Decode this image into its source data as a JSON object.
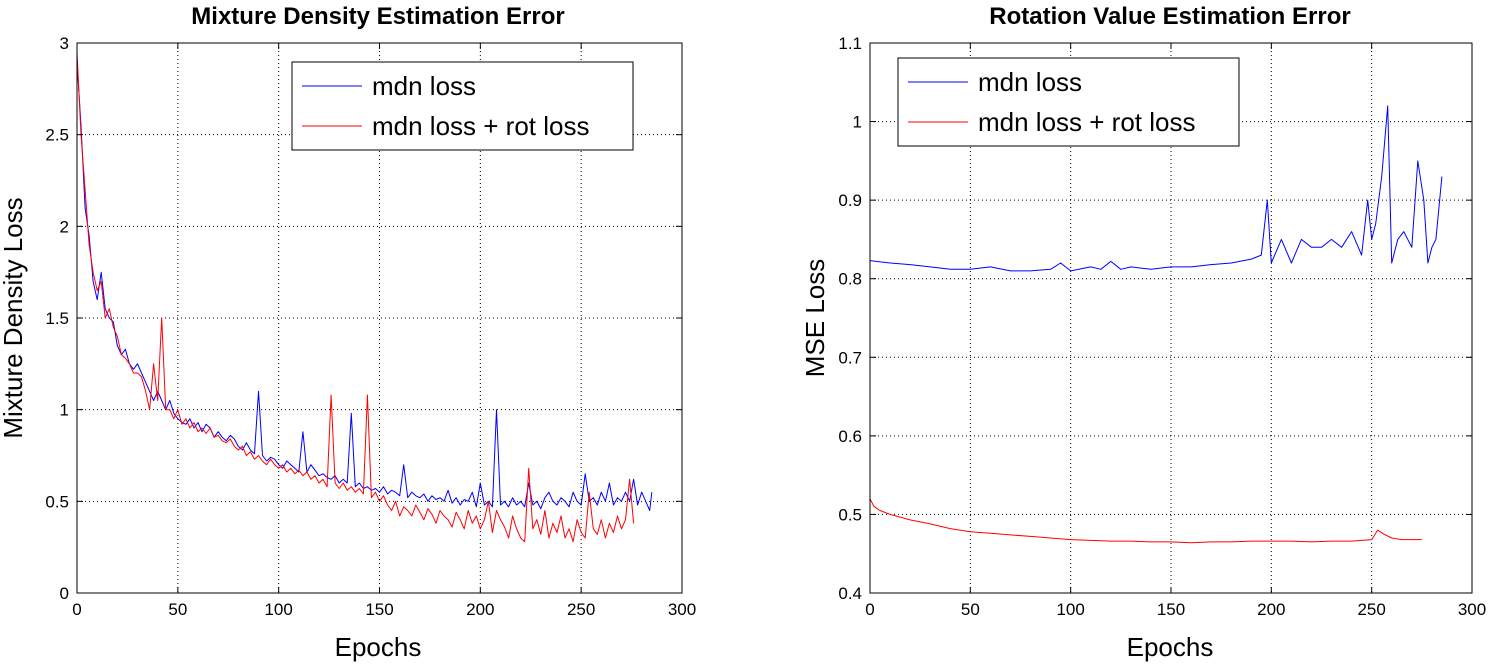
{
  "chart_data": [
    {
      "type": "line",
      "title": "Mixture Density Estimation Error",
      "xlabel": "Epochs",
      "ylabel": "Mixture Density Loss",
      "xlim": [
        0,
        300
      ],
      "ylim": [
        0,
        3
      ],
      "xticks": [
        0,
        50,
        100,
        150,
        200,
        250,
        300
      ],
      "yticks": [
        0,
        0.5,
        1,
        1.5,
        2,
        2.5,
        3
      ],
      "xtick_labels": [
        "0",
        "50",
        "100",
        "150",
        "200",
        "250",
        "300"
      ],
      "ytick_labels": [
        "0",
        "0.5",
        "1",
        "1.5",
        "2",
        "2.5",
        "3"
      ],
      "grid": true,
      "legend_position": "top-right",
      "series": [
        {
          "name": "mdn loss",
          "color": "#0000ff",
          "x": [
            0,
            2,
            4,
            6,
            8,
            10,
            12,
            14,
            16,
            18,
            20,
            22,
            24,
            26,
            28,
            30,
            32,
            34,
            36,
            38,
            40,
            42,
            44,
            46,
            48,
            50,
            52,
            54,
            56,
            58,
            60,
            62,
            64,
            66,
            68,
            70,
            72,
            74,
            76,
            78,
            80,
            82,
            84,
            86,
            88,
            90,
            92,
            94,
            96,
            98,
            100,
            102,
            104,
            106,
            108,
            110,
            112,
            114,
            116,
            118,
            120,
            122,
            124,
            126,
            128,
            130,
            132,
            134,
            136,
            138,
            140,
            142,
            144,
            146,
            148,
            150,
            152,
            154,
            156,
            158,
            160,
            162,
            164,
            166,
            168,
            170,
            172,
            174,
            176,
            178,
            180,
            182,
            184,
            186,
            188,
            190,
            192,
            194,
            196,
            198,
            200,
            202,
            204,
            206,
            208,
            210,
            212,
            214,
            216,
            218,
            220,
            222,
            224,
            226,
            228,
            230,
            232,
            234,
            236,
            238,
            240,
            242,
            244,
            246,
            248,
            250,
            252,
            254,
            256,
            258,
            260,
            262,
            264,
            266,
            268,
            270,
            272,
            274,
            276,
            278,
            280,
            282,
            284,
            285
          ],
          "y": [
            2.9,
            2.55,
            2.1,
            1.95,
            1.7,
            1.6,
            1.75,
            1.55,
            1.5,
            1.48,
            1.35,
            1.3,
            1.33,
            1.25,
            1.22,
            1.25,
            1.2,
            1.15,
            1.1,
            1.05,
            1.1,
            1.05,
            1.0,
            1.05,
            0.98,
            0.95,
            0.93,
            0.92,
            0.95,
            0.9,
            0.93,
            0.88,
            0.92,
            0.9,
            0.85,
            0.88,
            0.85,
            0.83,
            0.86,
            0.84,
            0.8,
            0.78,
            0.82,
            0.78,
            0.76,
            1.1,
            0.75,
            0.72,
            0.74,
            0.73,
            0.7,
            0.68,
            0.72,
            0.7,
            0.68,
            0.66,
            0.88,
            0.66,
            0.7,
            0.67,
            0.64,
            0.65,
            0.63,
            0.62,
            0.64,
            0.6,
            0.62,
            0.6,
            0.98,
            0.58,
            0.6,
            0.57,
            0.58,
            0.56,
            0.57,
            0.55,
            0.58,
            0.54,
            0.56,
            0.55,
            0.53,
            0.7,
            0.52,
            0.55,
            0.53,
            0.52,
            0.54,
            0.5,
            0.53,
            0.51,
            0.52,
            0.5,
            0.56,
            0.49,
            0.52,
            0.48,
            0.51,
            0.5,
            0.55,
            0.47,
            0.6,
            0.48,
            0.5,
            0.47,
            1.0,
            0.48,
            0.5,
            0.47,
            0.52,
            0.48,
            0.5,
            0.47,
            0.6,
            0.48,
            0.5,
            0.46,
            0.52,
            0.55,
            0.5,
            0.48,
            0.52,
            0.5,
            0.47,
            0.55,
            0.5,
            0.48,
            0.65,
            0.5,
            0.52,
            0.48,
            0.55,
            0.5,
            0.6,
            0.48,
            0.52,
            0.5,
            0.55,
            0.5,
            0.62,
            0.48,
            0.55,
            0.5,
            0.45,
            0.55
          ]
        },
        {
          "name": "mdn loss + rot loss",
          "color": "#ff0000",
          "x": [
            0,
            2,
            4,
            6,
            8,
            10,
            12,
            14,
            16,
            18,
            20,
            22,
            24,
            26,
            28,
            30,
            32,
            34,
            36,
            38,
            40,
            42,
            44,
            46,
            48,
            50,
            52,
            54,
            56,
            58,
            60,
            62,
            64,
            66,
            68,
            70,
            72,
            74,
            76,
            78,
            80,
            82,
            84,
            86,
            88,
            90,
            92,
            94,
            96,
            98,
            100,
            102,
            104,
            106,
            108,
            110,
            112,
            114,
            116,
            118,
            120,
            122,
            124,
            126,
            128,
            130,
            132,
            134,
            136,
            138,
            140,
            142,
            144,
            146,
            148,
            150,
            152,
            154,
            156,
            158,
            160,
            162,
            164,
            166,
            168,
            170,
            172,
            174,
            176,
            178,
            180,
            182,
            184,
            186,
            188,
            190,
            192,
            194,
            196,
            198,
            200,
            202,
            204,
            206,
            208,
            210,
            212,
            214,
            216,
            218,
            220,
            222,
            224,
            226,
            228,
            230,
            232,
            234,
            236,
            238,
            240,
            242,
            244,
            246,
            248,
            250,
            252,
            254,
            256,
            258,
            260,
            262,
            264,
            266,
            268,
            270,
            272,
            274,
            276
          ],
          "y": [
            2.95,
            2.5,
            2.2,
            1.9,
            1.75,
            1.65,
            1.7,
            1.5,
            1.55,
            1.45,
            1.4,
            1.3,
            1.28,
            1.25,
            1.2,
            1.2,
            1.18,
            1.1,
            1.0,
            1.25,
            1.05,
            1.5,
            1.0,
            1.0,
            0.95,
            1.0,
            0.92,
            0.95,
            0.9,
            0.93,
            0.88,
            0.9,
            0.87,
            0.9,
            0.85,
            0.86,
            0.83,
            0.82,
            0.84,
            0.8,
            0.78,
            0.8,
            0.75,
            0.77,
            0.73,
            0.75,
            0.72,
            0.7,
            0.73,
            0.7,
            0.68,
            0.7,
            0.66,
            0.68,
            0.65,
            0.67,
            0.64,
            0.66,
            0.62,
            0.64,
            0.6,
            0.62,
            0.58,
            1.08,
            0.6,
            0.57,
            0.6,
            0.56,
            0.58,
            0.55,
            0.57,
            0.54,
            1.08,
            0.52,
            0.55,
            0.5,
            0.53,
            0.48,
            0.45,
            0.5,
            0.42,
            0.47,
            0.45,
            0.42,
            0.48,
            0.44,
            0.4,
            0.46,
            0.43,
            0.38,
            0.45,
            0.42,
            0.4,
            0.36,
            0.44,
            0.4,
            0.35,
            0.45,
            0.38,
            0.42,
            0.35,
            0.4,
            0.5,
            0.33,
            0.45,
            0.4,
            0.36,
            0.3,
            0.42,
            0.35,
            0.3,
            0.28,
            0.68,
            0.35,
            0.4,
            0.32,
            0.45,
            0.3,
            0.38,
            0.33,
            0.42,
            0.3,
            0.35,
            0.28,
            0.4,
            0.33,
            0.3,
            0.55,
            0.35,
            0.32,
            0.4,
            0.3,
            0.38,
            0.33,
            0.42,
            0.35,
            0.4,
            0.62,
            0.38
          ]
        }
      ]
    },
    {
      "type": "line",
      "title": "Rotation Value Estimation Error",
      "xlabel": "Epochs",
      "ylabel": "MSE Loss",
      "xlim": [
        0,
        300
      ],
      "ylim": [
        0.4,
        1.1
      ],
      "xticks": [
        0,
        50,
        100,
        150,
        200,
        250,
        300
      ],
      "yticks": [
        0.4,
        0.5,
        0.6,
        0.7,
        0.8,
        0.9,
        1.0,
        1.1
      ],
      "xtick_labels": [
        "0",
        "50",
        "100",
        "150",
        "200",
        "250",
        "300"
      ],
      "ytick_labels": [
        "0.4",
        "0.5",
        "0.6",
        "0.7",
        "0.8",
        "0.9",
        "1",
        "1.1"
      ],
      "grid": true,
      "legend_position": "top-left",
      "series": [
        {
          "name": "mdn loss",
          "color": "#0000ff",
          "x": [
            0,
            10,
            20,
            30,
            40,
            50,
            60,
            70,
            80,
            90,
            95,
            100,
            110,
            115,
            120,
            125,
            130,
            140,
            150,
            160,
            170,
            180,
            190,
            195,
            198,
            200,
            205,
            210,
            215,
            220,
            225,
            230,
            235,
            240,
            245,
            248,
            250,
            252,
            255,
            258,
            260,
            263,
            266,
            270,
            273,
            276,
            278,
            280,
            282,
            285
          ],
          "y": [
            0.823,
            0.82,
            0.818,
            0.815,
            0.812,
            0.812,
            0.815,
            0.81,
            0.81,
            0.812,
            0.82,
            0.81,
            0.815,
            0.812,
            0.822,
            0.812,
            0.815,
            0.812,
            0.815,
            0.815,
            0.818,
            0.82,
            0.825,
            0.83,
            0.9,
            0.82,
            0.85,
            0.82,
            0.85,
            0.84,
            0.84,
            0.85,
            0.84,
            0.86,
            0.83,
            0.9,
            0.85,
            0.87,
            0.93,
            1.02,
            0.82,
            0.85,
            0.86,
            0.84,
            0.95,
            0.9,
            0.82,
            0.84,
            0.85,
            0.93
          ]
        },
        {
          "name": "mdn loss + rot loss",
          "color": "#ff0000",
          "x": [
            0,
            2,
            5,
            10,
            20,
            30,
            40,
            50,
            60,
            70,
            80,
            90,
            100,
            110,
            120,
            130,
            140,
            150,
            160,
            170,
            180,
            190,
            200,
            210,
            220,
            230,
            240,
            250,
            253,
            256,
            260,
            265,
            270,
            275
          ],
          "y": [
            0.52,
            0.51,
            0.505,
            0.5,
            0.493,
            0.488,
            0.482,
            0.478,
            0.476,
            0.474,
            0.472,
            0.47,
            0.468,
            0.467,
            0.466,
            0.466,
            0.465,
            0.465,
            0.464,
            0.465,
            0.465,
            0.466,
            0.466,
            0.466,
            0.465,
            0.466,
            0.466,
            0.468,
            0.48,
            0.475,
            0.47,
            0.468,
            0.468,
            0.468
          ]
        }
      ]
    }
  ]
}
